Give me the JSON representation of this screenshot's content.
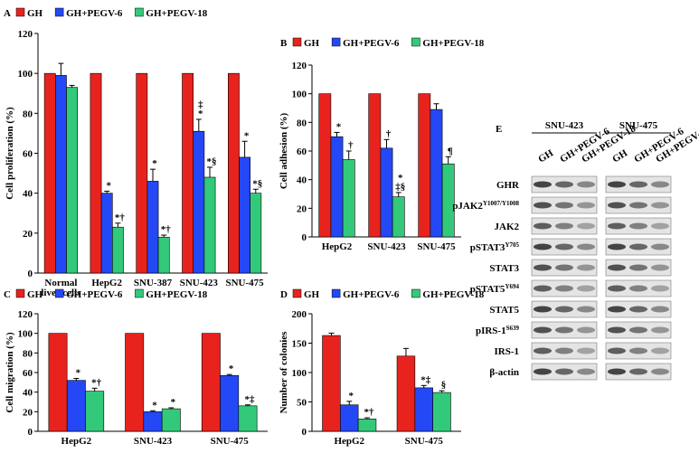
{
  "chart_data": [
    {
      "type": "bar",
      "label": "A",
      "ylabel": "Cell proliferation (%)",
      "categories": [
        "Normal\nliver cells",
        "HepG2",
        "SNU-387",
        "SNU-423",
        "SNU-475"
      ],
      "ylim": [
        0,
        120
      ],
      "yticks": [
        0,
        20,
        40,
        60,
        80,
        100,
        120
      ],
      "series": [
        {
          "name": "GH",
          "color": "#e8231e",
          "values": [
            100,
            100,
            100,
            100,
            100
          ],
          "annotations": [
            null,
            null,
            null,
            null,
            null
          ]
        },
        {
          "name": "GH+PEGV-6",
          "color": "#2448f5",
          "values": [
            99,
            40,
            46,
            71,
            58
          ],
          "errors": [
            6,
            1,
            6,
            6,
            8
          ],
          "annotations": [
            null,
            "*",
            "*",
            "‡\n*",
            "*"
          ]
        },
        {
          "name": "GH+PEGV-18",
          "color": "#33c97a",
          "values": [
            93,
            23,
            18,
            48,
            40
          ],
          "errors": [
            1,
            2,
            1,
            5,
            2
          ],
          "annotations": [
            null,
            "*†",
            "*†",
            "*§",
            "*§"
          ]
        }
      ]
    },
    {
      "type": "bar",
      "label": "B",
      "ylabel": "Cell adhesion (%)",
      "categories": [
        "HepG2",
        "SNU-423",
        "SNU-475"
      ],
      "ylim": [
        0,
        120
      ],
      "yticks": [
        0,
        20,
        40,
        60,
        80,
        100,
        120
      ],
      "series": [
        {
          "name": "GH",
          "color": "#e8231e",
          "values": [
            100,
            100,
            100
          ],
          "annotations": [
            null,
            null,
            null
          ]
        },
        {
          "name": "GH+PEGV-6",
          "color": "#2448f5",
          "values": [
            70,
            62,
            89
          ],
          "errors": [
            3,
            6,
            4
          ],
          "annotations": [
            "*",
            "†",
            null
          ]
        },
        {
          "name": "GH+PEGV-18",
          "color": "#33c97a",
          "values": [
            54,
            28,
            51
          ],
          "errors": [
            6,
            3,
            5
          ],
          "annotations": [
            "†",
            "*\n‡§",
            "¶"
          ]
        }
      ]
    },
    {
      "type": "bar",
      "label": "C",
      "ylabel": "Cell migration (%)",
      "categories": [
        "HepG2",
        "SNU-423",
        "SNU-475"
      ],
      "ylim": [
        0,
        120
      ],
      "yticks": [
        0,
        20,
        40,
        60,
        80,
        100,
        120
      ],
      "series": [
        {
          "name": "GH",
          "color": "#e8231e",
          "values": [
            100,
            100,
            100
          ],
          "annotations": [
            null,
            null,
            null
          ]
        },
        {
          "name": "GH+PEGV-6",
          "color": "#2448f5",
          "values": [
            52,
            20,
            57
          ],
          "errors": [
            2,
            1,
            1
          ],
          "annotations": [
            "*",
            "*",
            "*"
          ]
        },
        {
          "name": "GH+PEGV-18",
          "color": "#33c97a",
          "values": [
            41,
            23,
            26
          ],
          "errors": [
            3,
            1,
            1
          ],
          "annotations": [
            "*†",
            "*",
            "*‡"
          ]
        }
      ]
    },
    {
      "type": "bar",
      "label": "D",
      "ylabel": "Number of colonies",
      "categories": [
        "HepG2",
        "SNU-475"
      ],
      "ylim": [
        0,
        200
      ],
      "yticks": [
        0,
        50,
        100,
        150,
        200
      ],
      "series": [
        {
          "name": "GH",
          "color": "#e8231e",
          "values": [
            163,
            128
          ],
          "errors": [
            4,
            13
          ],
          "annotations": [
            null,
            null
          ]
        },
        {
          "name": "GH+PEGV-6",
          "color": "#2448f5",
          "values": [
            45,
            74
          ],
          "errors": [
            6,
            4
          ],
          "annotations": [
            "*",
            "*‡"
          ]
        },
        {
          "name": "GH+PEGV-18",
          "color": "#33c97a",
          "values": [
            21,
            66
          ],
          "errors": [
            2,
            3
          ],
          "annotations": [
            "*†",
            "§"
          ]
        }
      ]
    }
  ],
  "blot": {
    "label": "E",
    "groups": [
      "SNU-423",
      "SNU-475"
    ],
    "lanes": [
      "GH",
      "GH+PEGV-6",
      "GH+PEGV-18"
    ],
    "proteins": [
      {
        "name": "GHR"
      },
      {
        "name": "pJAK2",
        "site": "Y1007/Y1008"
      },
      {
        "name": "JAK2"
      },
      {
        "name": "pSTAT3",
        "site": "Y705"
      },
      {
        "name": "STAT3"
      },
      {
        "name": "pSTAT5",
        "site": "Y694"
      },
      {
        "name": "STAT5"
      },
      {
        "name": "pIRS-1",
        "site": "S639"
      },
      {
        "name": "IRS-1"
      },
      {
        "name": "β-actin"
      }
    ]
  }
}
